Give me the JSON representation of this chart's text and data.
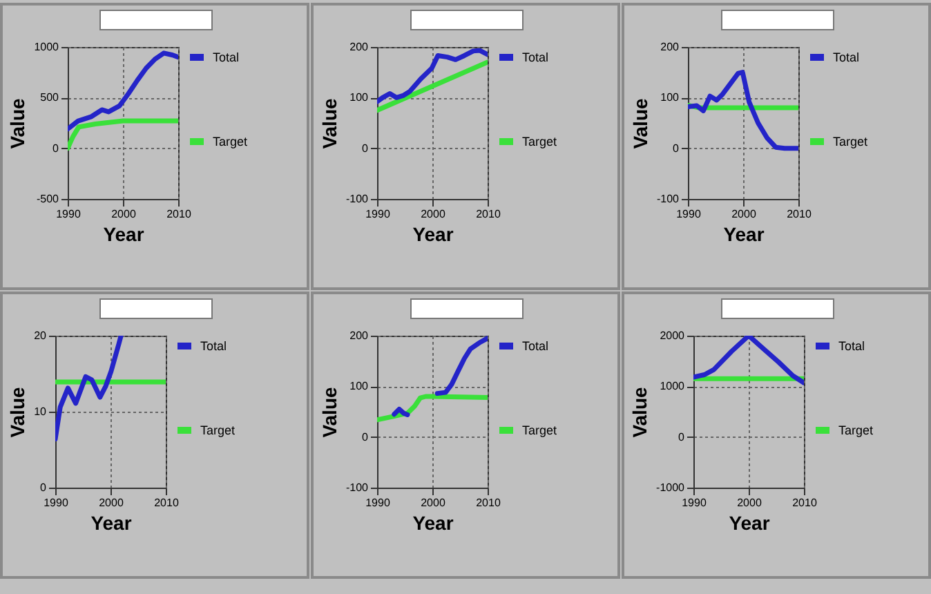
{
  "chart_data": [
    {
      "type": "line",
      "xlabel": "Year",
      "ylabel": "Value",
      "xlim": [
        1990,
        2010
      ],
      "ylim": [
        -500,
        1000
      ],
      "xticks": [
        1990,
        2000,
        2010
      ],
      "yticks": [
        -500,
        0,
        500,
        1000
      ],
      "grid": true,
      "legend": "right",
      "series": [
        {
          "name": "Total",
          "color": "#2424c8",
          "x": [
            1990,
            1991.9,
            1994.2,
            1996.2,
            1997.4,
            1999.4,
            2001,
            2002.6,
            2004.2,
            2005.8,
            2007.4,
            2009,
            2010
          ],
          "values": [
            190,
            270,
            310,
            380,
            360,
            420,
            540,
            670,
            790,
            880,
            940,
            920,
            900
          ]
        },
        {
          "name": "Target",
          "color": "#3ae03a",
          "x": [
            1990,
            1991,
            1992,
            1995,
            2000,
            2010
          ],
          "values": [
            0,
            120,
            210,
            240,
            270,
            270
          ]
        }
      ]
    },
    {
      "type": "line",
      "xlabel": "Year",
      "ylabel": "Value",
      "xlim": [
        1990,
        2010
      ],
      "ylim": [
        -100,
        200
      ],
      "xticks": [
        1990,
        2000,
        2010
      ],
      "yticks": [
        -100,
        0,
        100,
        200
      ],
      "grid": true,
      "legend": "right",
      "series": [
        {
          "name": "Total",
          "color": "#2424c8",
          "x": [
            1990,
            1991,
            1992.3,
            1993.5,
            1994.7,
            1995.9,
            1997.9,
            1999.9,
            2001,
            2002.7,
            2004.2,
            2005.8,
            2007.4,
            2008.6,
            2010
          ],
          "values": [
            92,
            100,
            108,
            100,
            104,
            112,
            137,
            158,
            183,
            180,
            175,
            183,
            192,
            193,
            185
          ]
        },
        {
          "name": "Target",
          "color": "#3ae03a",
          "x": [
            1990,
            2010
          ],
          "values": [
            75,
            170
          ]
        }
      ]
    },
    {
      "type": "line",
      "xlabel": "Year",
      "ylabel": "Value",
      "xlim": [
        1990,
        2010
      ],
      "ylim": [
        -100,
        200
      ],
      "xticks": [
        1990,
        2000,
        2010
      ],
      "yticks": [
        -100,
        0,
        100,
        200
      ],
      "grid": true,
      "legend": "right",
      "series": [
        {
          "name": "Total",
          "color": "#2424c8",
          "x": [
            1990,
            1991.6,
            1992.8,
            1994,
            1995.2,
            1996.3,
            1998,
            1999.1,
            1999.9,
            2001.1,
            2002.7,
            2004.3,
            2005.9,
            2007.5,
            2010
          ],
          "values": [
            82,
            84,
            74,
            103,
            95,
            107,
            132,
            148,
            150,
            91,
            50,
            21,
            2,
            0,
            0
          ]
        },
        {
          "name": "Target",
          "color": "#3ae03a",
          "x": [
            1990,
            1992,
            2010
          ],
          "values": [
            85,
            80,
            80
          ]
        }
      ]
    },
    {
      "type": "line",
      "xlabel": "Year",
      "ylabel": "Value",
      "xlim": [
        1990,
        2010
      ],
      "ylim": [
        0,
        20
      ],
      "xticks": [
        1990,
        2000,
        2010
      ],
      "yticks": [
        0,
        10,
        20
      ],
      "grid": true,
      "legend": "right",
      "series": [
        {
          "name": "Total",
          "color": "#2424c8",
          "x": [
            1990,
            1990.9,
            1992.3,
            1993.7,
            1995.5,
            1996.6,
            1998.1,
            1999.1,
            2000.1,
            2001.5,
            2001.9
          ],
          "values": [
            6.4,
            10.6,
            13.1,
            11.1,
            14.6,
            14.2,
            11.9,
            13.3,
            15.3,
            18.9,
            20
          ]
        },
        {
          "name": "Target",
          "color": "#3ae03a",
          "x": [
            1990,
            2010
          ],
          "values": [
            13.9,
            13.9
          ]
        }
      ]
    },
    {
      "type": "line",
      "xlabel": "Year",
      "ylabel": "Value",
      "xlim": [
        1990,
        2010
      ],
      "ylim": [
        -100,
        200
      ],
      "xticks": [
        1990,
        2000,
        2010
      ],
      "yticks": [
        -100,
        0,
        100,
        200
      ],
      "grid": true,
      "legend": "right",
      "series": [
        {
          "name": "Total",
          "color": "#2424c8",
          "x": [
            2000.9,
            2002.4,
            2003.5,
            2004.7,
            2005.8,
            2006.9,
            2008.5,
            2010
          ],
          "values": [
            86,
            88,
            104,
            131,
            155,
            174,
            186,
            195
          ]
        },
        {
          "name": "Target",
          "color": "#3ae03a",
          "x": [
            1990,
            1993.1,
            1995.5,
            1996.8,
            1997.8,
            1998.8,
            2000,
            2010
          ],
          "values": [
            34,
            41,
            47,
            61,
            77,
            80,
            80,
            78
          ]
        },
        {
          "color": "#2424c8",
          "x": [
            1993.1,
            1994,
            1994.8,
            1995.5
          ],
          "values": [
            45,
            55,
            47,
            44
          ]
        }
      ]
    },
    {
      "type": "line",
      "xlabel": "Year",
      "ylabel": "Value",
      "xlim": [
        1990,
        2010
      ],
      "ylim": [
        -1000,
        2000
      ],
      "xticks": [
        1990,
        2000,
        2010
      ],
      "yticks": [
        -1000,
        0,
        1000,
        2000
      ],
      "grid": true,
      "legend": "right",
      "series": [
        {
          "name": "Total",
          "color": "#2424c8",
          "x": [
            1990,
            1992,
            1993.7,
            1996.9,
            2000,
            2002.8,
            2005.4,
            2008,
            2010
          ],
          "values": [
            1180,
            1230,
            1330,
            1690,
            2000,
            1730,
            1480,
            1210,
            1070
          ]
        },
        {
          "name": "Target",
          "color": "#3ae03a",
          "x": [
            1990,
            2010
          ],
          "values": [
            1150,
            1150
          ]
        }
      ]
    }
  ]
}
